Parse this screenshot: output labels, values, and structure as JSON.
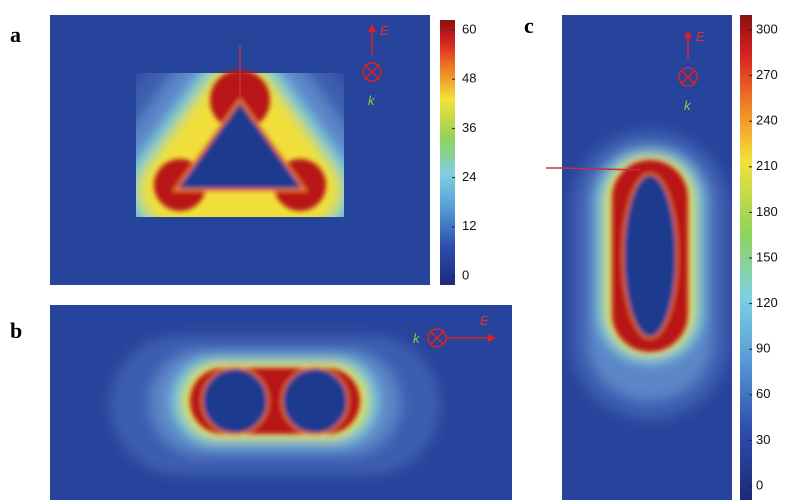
{
  "panels": [
    {
      "label": "a",
      "colorbar_ticks": [
        60,
        48,
        36,
        24,
        12,
        0
      ],
      "e_label": "E",
      "k_label": "k"
    },
    {
      "label": "b",
      "e_label": "E",
      "k_label": "k"
    },
    {
      "label": "c",
      "colorbar_ticks": [
        300,
        270,
        240,
        210,
        180,
        150,
        120,
        90,
        60,
        30,
        0
      ],
      "e_label": "E",
      "k_label": "k"
    }
  ]
}
